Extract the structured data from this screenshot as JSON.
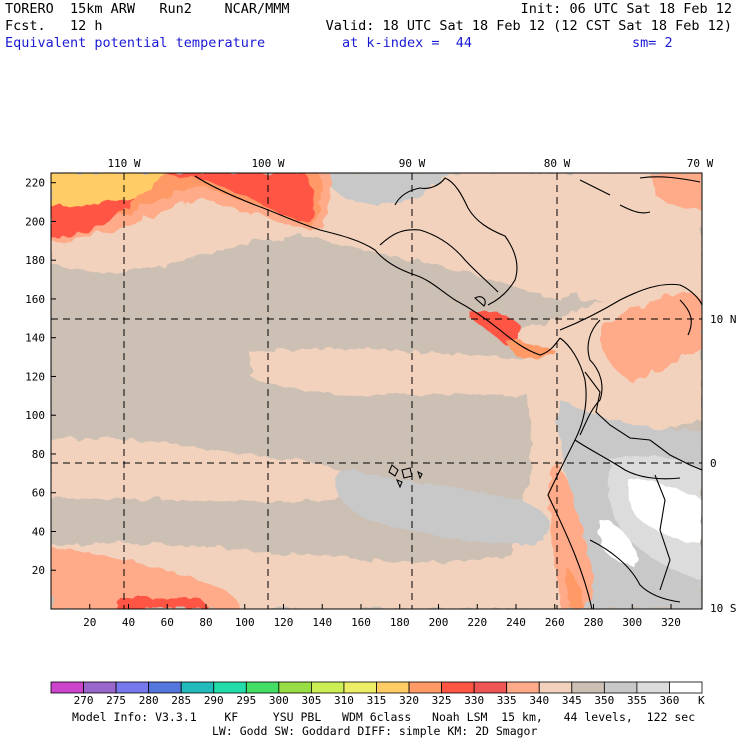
{
  "header": {
    "model": "TORERO  15km ARW   Run2    NCAR/MMM",
    "fcst": "Fcst.   12 h",
    "init": "Init: 06 UTC Sat 18 Feb 12",
    "valid": "Valid: 18 UTC Sat 18 Feb 12 (12 CST Sat 18 Feb 12)",
    "field": "Equivalent potential temperature",
    "level": "at k-index =  44",
    "smooth": "sm= 2"
  },
  "map": {
    "lon_labels": [
      "110 W",
      "100 W",
      "90 W",
      "80 W",
      "70 W"
    ],
    "lat_labels": [
      "10 N",
      "0",
      "10 S"
    ],
    "y_ticks": [
      "220",
      "200",
      "180",
      "160",
      "140",
      "120",
      "100",
      "80",
      "60",
      "40",
      "20"
    ],
    "x_ticks": [
      "20",
      "40",
      "60",
      "80",
      "100",
      "120",
      "140",
      "160",
      "180",
      "200",
      "220",
      "240",
      "260",
      "280",
      "300",
      "320"
    ]
  },
  "colorbar": {
    "unit": "K",
    "labels": [
      "270",
      "275",
      "280",
      "285",
      "290",
      "295",
      "300",
      "305",
      "310",
      "315",
      "320",
      "325",
      "330",
      "335",
      "340",
      "345",
      "350",
      "355",
      "360"
    ],
    "colors": [
      "#cc44cc",
      "#9966cc",
      "#7777ee",
      "#5577dd",
      "#22bbbb",
      "#22ddaa",
      "#44dd66",
      "#99dd44",
      "#ccee55",
      "#eeee66",
      "#ffcc66",
      "#ff9966",
      "#ff5544",
      "#ee5555",
      "#ffaa88",
      "#f2d2bc",
      "#ccbfb4",
      "#c8c8c8",
      "#dcdcdc",
      "#ffffff"
    ]
  },
  "footer": {
    "line1": "Model Info: V3.3.1    KF     YSU PBL   WDM 6class   Noah LSM  15 km,   44 levels,  122 sec",
    "line2": "LW: Godd SW: Goddard DIFF: simple KM: 2D Smagor"
  }
}
